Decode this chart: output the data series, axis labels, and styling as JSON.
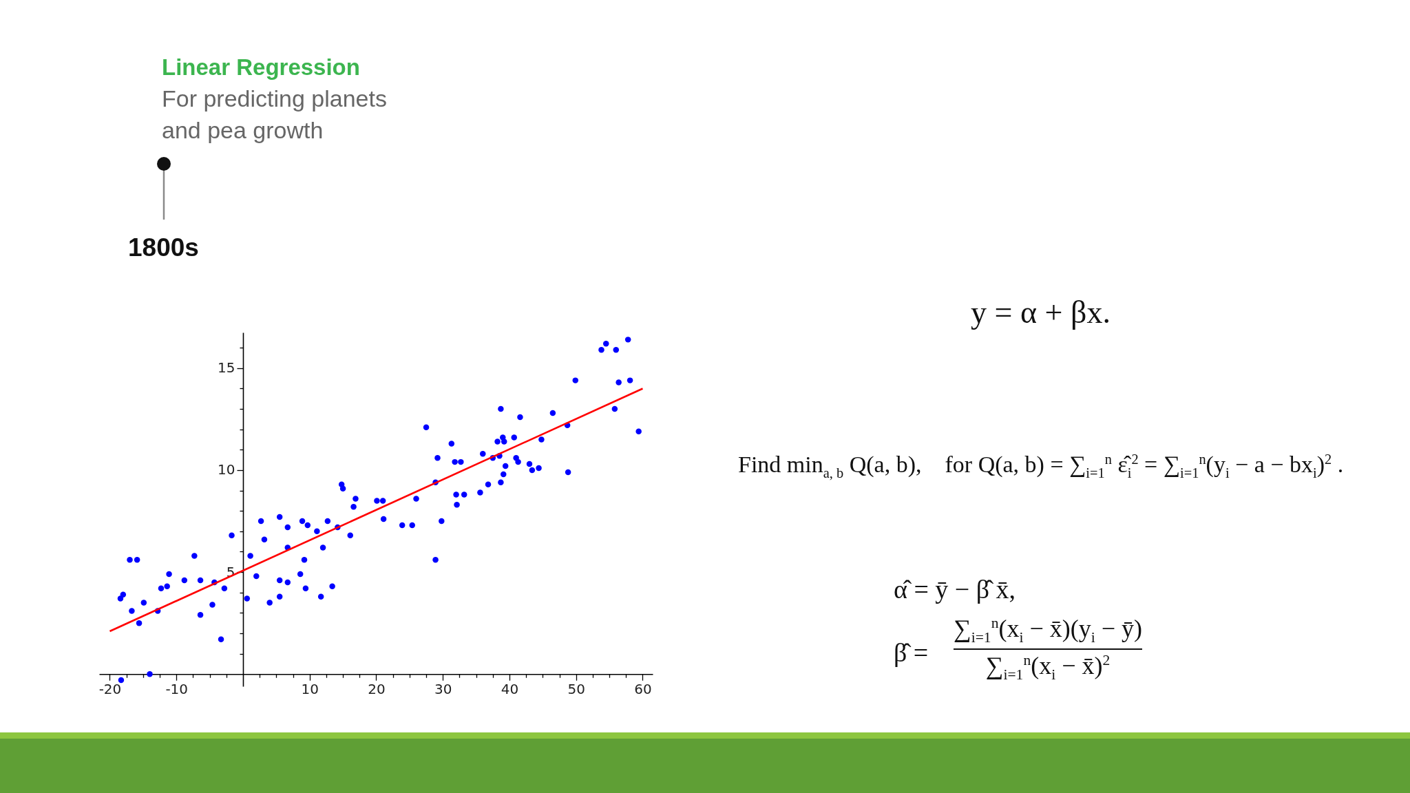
{
  "chart_data": {
    "type": "scatter",
    "title": "Linear Regression",
    "subtitle": "For predicting planets and pea growth",
    "annotations": [
      "1800s",
      "y = α + βx.",
      "Find min$_{a, b}$ Q(a, b),    for Q(a, b) = ∑$_{i=1}$$^{n}$ ε̂$_{i}$$^{2}$ = ∑$_{i=1}$$^{n}$(y$_{i}$ − a − bx$_{i}$)$^{2}$ .",
      "α̂ = ȳ − β̂ x̄,",
      "β̂ =",
      "∑$_{i=1}$$^{n}$(x$_{i}$ − x̄)(y$_{i}$ − ȳ)",
      "∑$_{i=1}$$^{n}$(x$_{i}$ − x̄)$^{2}$"
    ],
    "xlim": [
      -21.6,
      61.5
    ],
    "ylim": [
      -0.6,
      16.75
    ],
    "xticks": [
      -20,
      {
        "value": -17.5,
        "label": null
      },
      {
        "value": -15,
        "label": null
      },
      {
        "value": -12.5,
        "label": null
      },
      -10,
      {
        "value": -7.5,
        "label": null
      },
      {
        "value": -5,
        "label": null
      },
      {
        "value": -2.5,
        "label": null
      },
      {
        "value": 2.5,
        "label": null
      },
      {
        "value": 5,
        "label": null
      },
      {
        "value": 7.5,
        "label": null
      },
      10,
      {
        "value": 12.5,
        "label": null
      },
      {
        "value": 15,
        "label": null
      },
      {
        "value": 17.5,
        "label": null
      },
      20,
      {
        "value": 22.5,
        "label": null
      },
      {
        "value": 25,
        "label": null
      },
      {
        "value": 27.5,
        "label": null
      },
      30,
      {
        "value": 32.5,
        "label": null
      },
      {
        "value": 35,
        "label": null
      },
      {
        "value": 37.5,
        "label": null
      },
      40,
      {
        "value": 42.5,
        "label": null
      },
      {
        "value": 45,
        "label": null
      },
      {
        "value": 47.5,
        "label": null
      },
      50,
      {
        "value": 52.5,
        "label": null
      },
      {
        "value": 55,
        "label": null
      },
      {
        "value": 57.5,
        "label": null
      },
      60
    ],
    "yticks": [
      {
        "value": 1,
        "label": null
      },
      {
        "value": 2,
        "label": null
      },
      {
        "value": 3,
        "label": null
      },
      {
        "value": 4,
        "label": null
      },
      5,
      {
        "value": 6,
        "label": null
      },
      {
        "value": 7,
        "label": null
      },
      {
        "value": 8,
        "label": null
      },
      {
        "value": 9,
        "label": null
      },
      10,
      {
        "value": 11,
        "label": null
      },
      {
        "value": 12,
        "label": null
      },
      {
        "value": 13,
        "label": null
      },
      {
        "value": 14,
        "label": null
      },
      15,
      {
        "value": 16,
        "label": null
      }
    ],
    "grid": false,
    "marker": "circle",
    "series": [
      {
        "color": "#0000ff",
        "x": [
          16.6,
          5.5,
          2.7,
          8.9,
          9.7,
          12.7,
          6.7,
          11.1,
          14.2,
          -1.7,
          3.2,
          16.1,
          6.7,
          12.0,
          -7.3,
          -17.0,
          -15.9,
          1.1,
          9.2,
          -11.1,
          2.0,
          8.6,
          -8.8,
          -6.4,
          5.5,
          6.7,
          -4.3,
          -12.3,
          -11.4,
          -2.8,
          9.4,
          13.4,
          -18.0,
          -18.4,
          0.6,
          5.5,
          11.7,
          -14.9,
          4.0,
          -4.6,
          -16.7,
          -12.8,
          -6.4,
          -15.6,
          -3.3,
          -14.0,
          -18.3,
          14.8,
          15.0,
          16.9,
          21.1,
          23.9,
          25.4,
          29.8,
          28.9,
          57.8,
          54.5,
          53.8,
          56.0,
          49.9,
          56.4,
          58.1,
          55.8,
          38.7,
          41.6,
          46.5,
          27.5,
          48.7,
          59.4,
          39.0,
          38.2,
          39.2,
          40.7,
          44.8,
          31.3,
          29.2,
          36.0,
          31.8,
          32.7,
          38.5,
          37.5,
          41.0,
          41.3,
          39.4,
          43.0,
          43.4,
          44.4,
          48.8,
          39.1,
          38.7,
          36.8,
          35.6,
          28.9,
          32.0,
          33.2,
          32.1,
          26.0,
          20.1,
          21.0
        ],
        "values": [
          8.2,
          7.7,
          7.5,
          7.5,
          7.3,
          7.5,
          7.2,
          7.0,
          7.2,
          6.8,
          6.6,
          6.8,
          6.2,
          6.2,
          5.8,
          5.6,
          5.6,
          5.8,
          5.6,
          4.9,
          4.8,
          4.9,
          4.6,
          4.6,
          4.6,
          4.5,
          4.5,
          4.2,
          4.3,
          4.2,
          4.2,
          4.3,
          3.9,
          3.7,
          3.7,
          3.8,
          3.8,
          3.5,
          3.5,
          3.4,
          3.1,
          3.1,
          2.9,
          2.5,
          1.7,
          0.0,
          -0.3,
          9.3,
          9.1,
          8.6,
          7.6,
          7.3,
          7.3,
          7.5,
          5.6,
          16.4,
          16.2,
          15.9,
          15.9,
          14.4,
          14.3,
          14.4,
          13.0,
          13.0,
          12.6,
          12.8,
          12.1,
          12.2,
          11.9,
          11.6,
          11.4,
          11.4,
          11.6,
          11.5,
          11.3,
          10.6,
          10.8,
          10.4,
          10.4,
          10.7,
          10.6,
          10.6,
          10.4,
          10.2,
          10.3,
          10.0,
          10.1,
          9.9,
          9.8,
          9.4,
          9.3,
          8.9,
          9.4,
          8.8,
          8.8,
          8.3,
          8.6,
          8.5,
          8.5
        ]
      },
      {
        "type": "line",
        "color": "#ff0000",
        "marker": "none",
        "x": [
          -20,
          60
        ],
        "values": [
          2.1,
          14.0
        ]
      }
    ]
  }
}
